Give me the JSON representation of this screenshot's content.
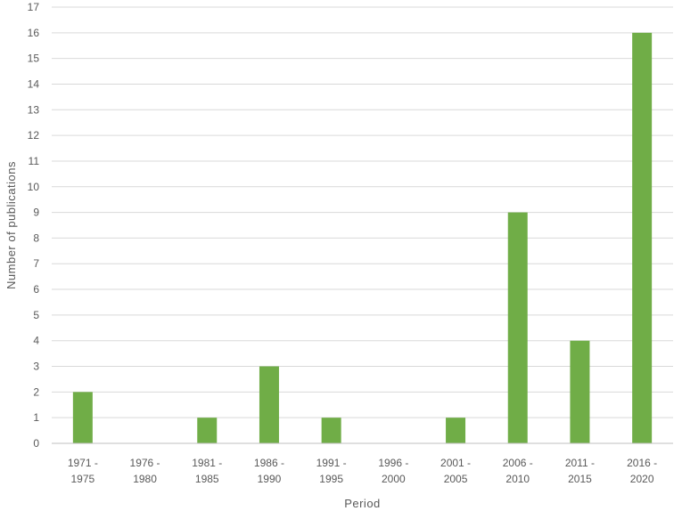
{
  "chart_data": {
    "type": "bar",
    "title": "",
    "xlabel": "Period",
    "ylabel": "Number of publications",
    "categories": [
      [
        "1971 -",
        "1975"
      ],
      [
        "1976 -",
        "1980"
      ],
      [
        "1981 -",
        "1985"
      ],
      [
        "1986 -",
        "1990"
      ],
      [
        "1991 -",
        "1995"
      ],
      [
        "1996 -",
        "2000"
      ],
      [
        "2001 -",
        "2005"
      ],
      [
        "2006 -",
        "2010"
      ],
      [
        "2011 -",
        "2015"
      ],
      [
        "2016 -",
        "2020"
      ]
    ],
    "values": [
      2,
      0,
      1,
      3,
      1,
      0,
      1,
      9,
      4,
      16
    ],
    "ylim": [
      0,
      17
    ],
    "yticks": [
      0,
      1,
      2,
      3,
      4,
      5,
      6,
      7,
      8,
      9,
      10,
      11,
      12,
      13,
      14,
      15,
      16,
      17
    ],
    "grid": true,
    "legend": "none",
    "bar_color": "#70ad47"
  }
}
